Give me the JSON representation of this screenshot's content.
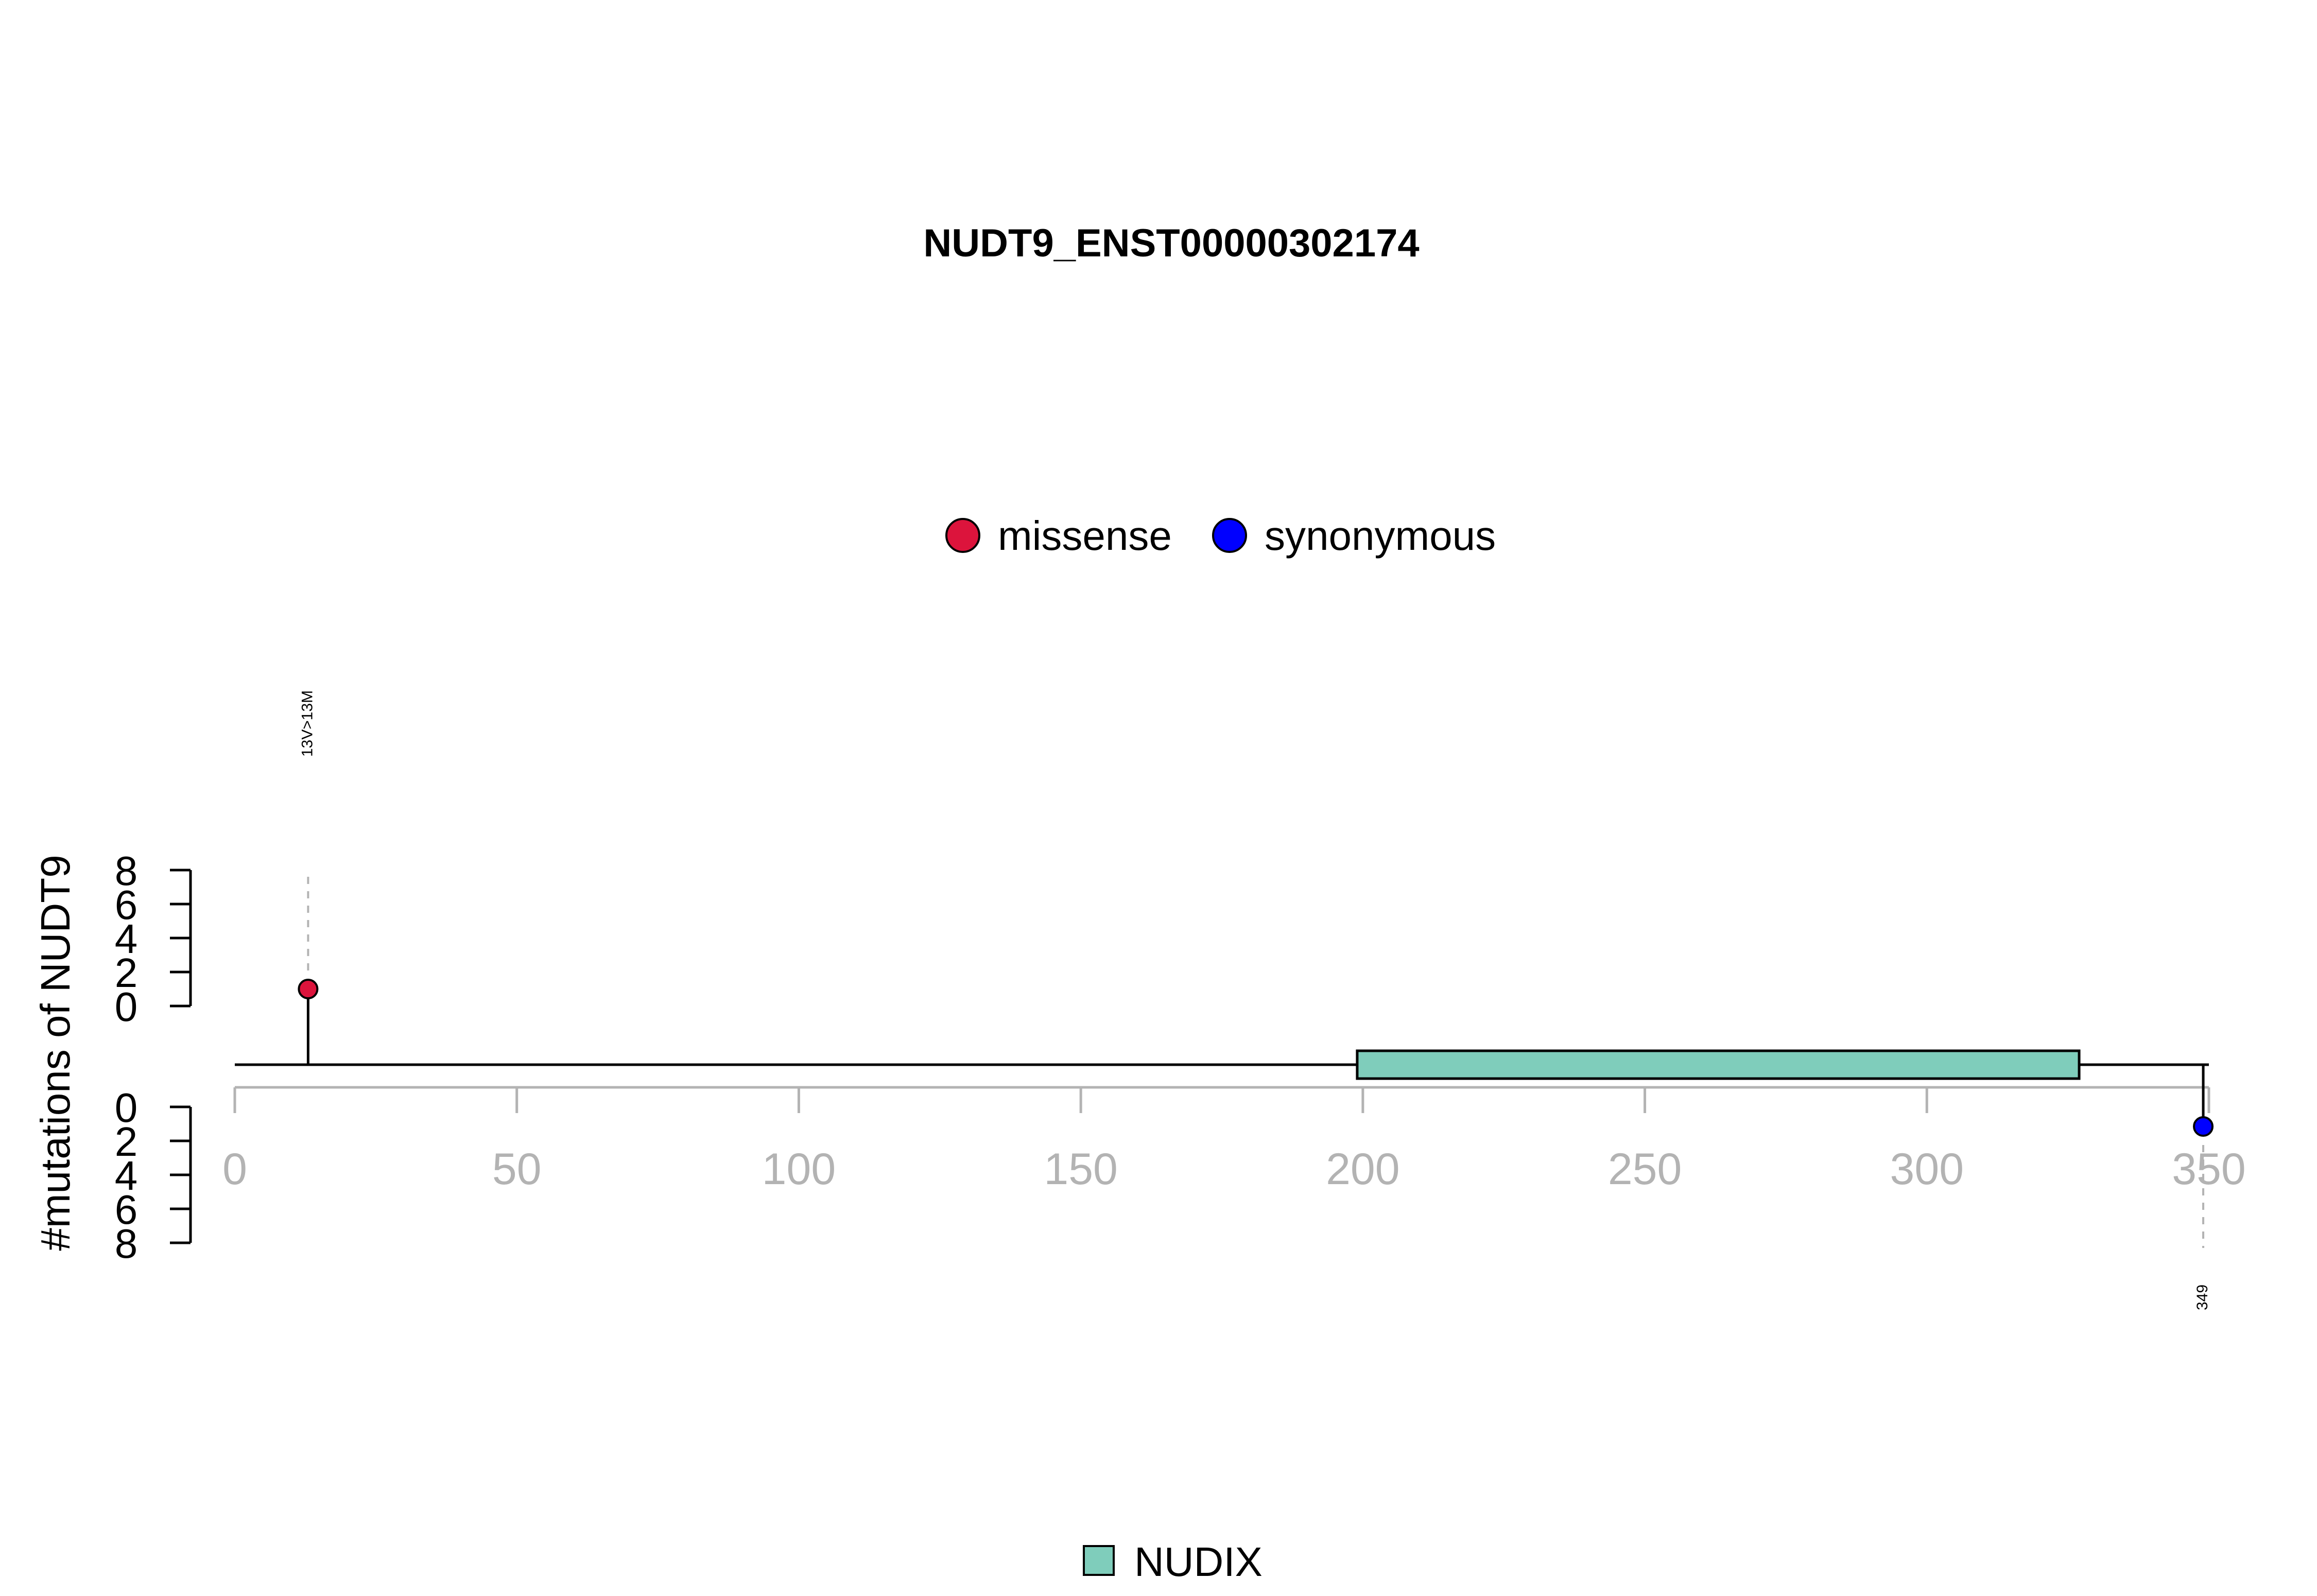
{
  "chart_data": {
    "type": "lollipop",
    "title": "NUDT9_ENST00000302174",
    "ylabel": "#mutations of NUDT9",
    "x_range": [
      0,
      350
    ],
    "x_ticks": [
      0,
      50,
      100,
      150,
      200,
      250,
      300,
      350
    ],
    "y_ticks_top": [
      0,
      2,
      4,
      6,
      8
    ],
    "y_ticks_bottom": [
      0,
      2,
      4,
      6,
      8
    ],
    "protein_length": 350,
    "legend_mutations": [
      {
        "name": "missense",
        "color": "#dc143c"
      },
      {
        "name": "synonymous",
        "color": "#0000ff"
      }
    ],
    "legend_domains": [
      {
        "name": "NUDIX",
        "color": "#7fcdbb"
      }
    ],
    "domains": [
      {
        "name": "NUDIX",
        "start": 199,
        "end": 327,
        "color": "#7fcdbb"
      }
    ],
    "mutations": [
      {
        "position": 13,
        "label": "13V>13M",
        "type": "missense",
        "count": 1,
        "side": "top",
        "color": "#dc143c"
      },
      {
        "position": 349,
        "label": "349",
        "type": "synonymous",
        "count": 1,
        "side": "bottom",
        "color": "#0000ff"
      }
    ]
  }
}
